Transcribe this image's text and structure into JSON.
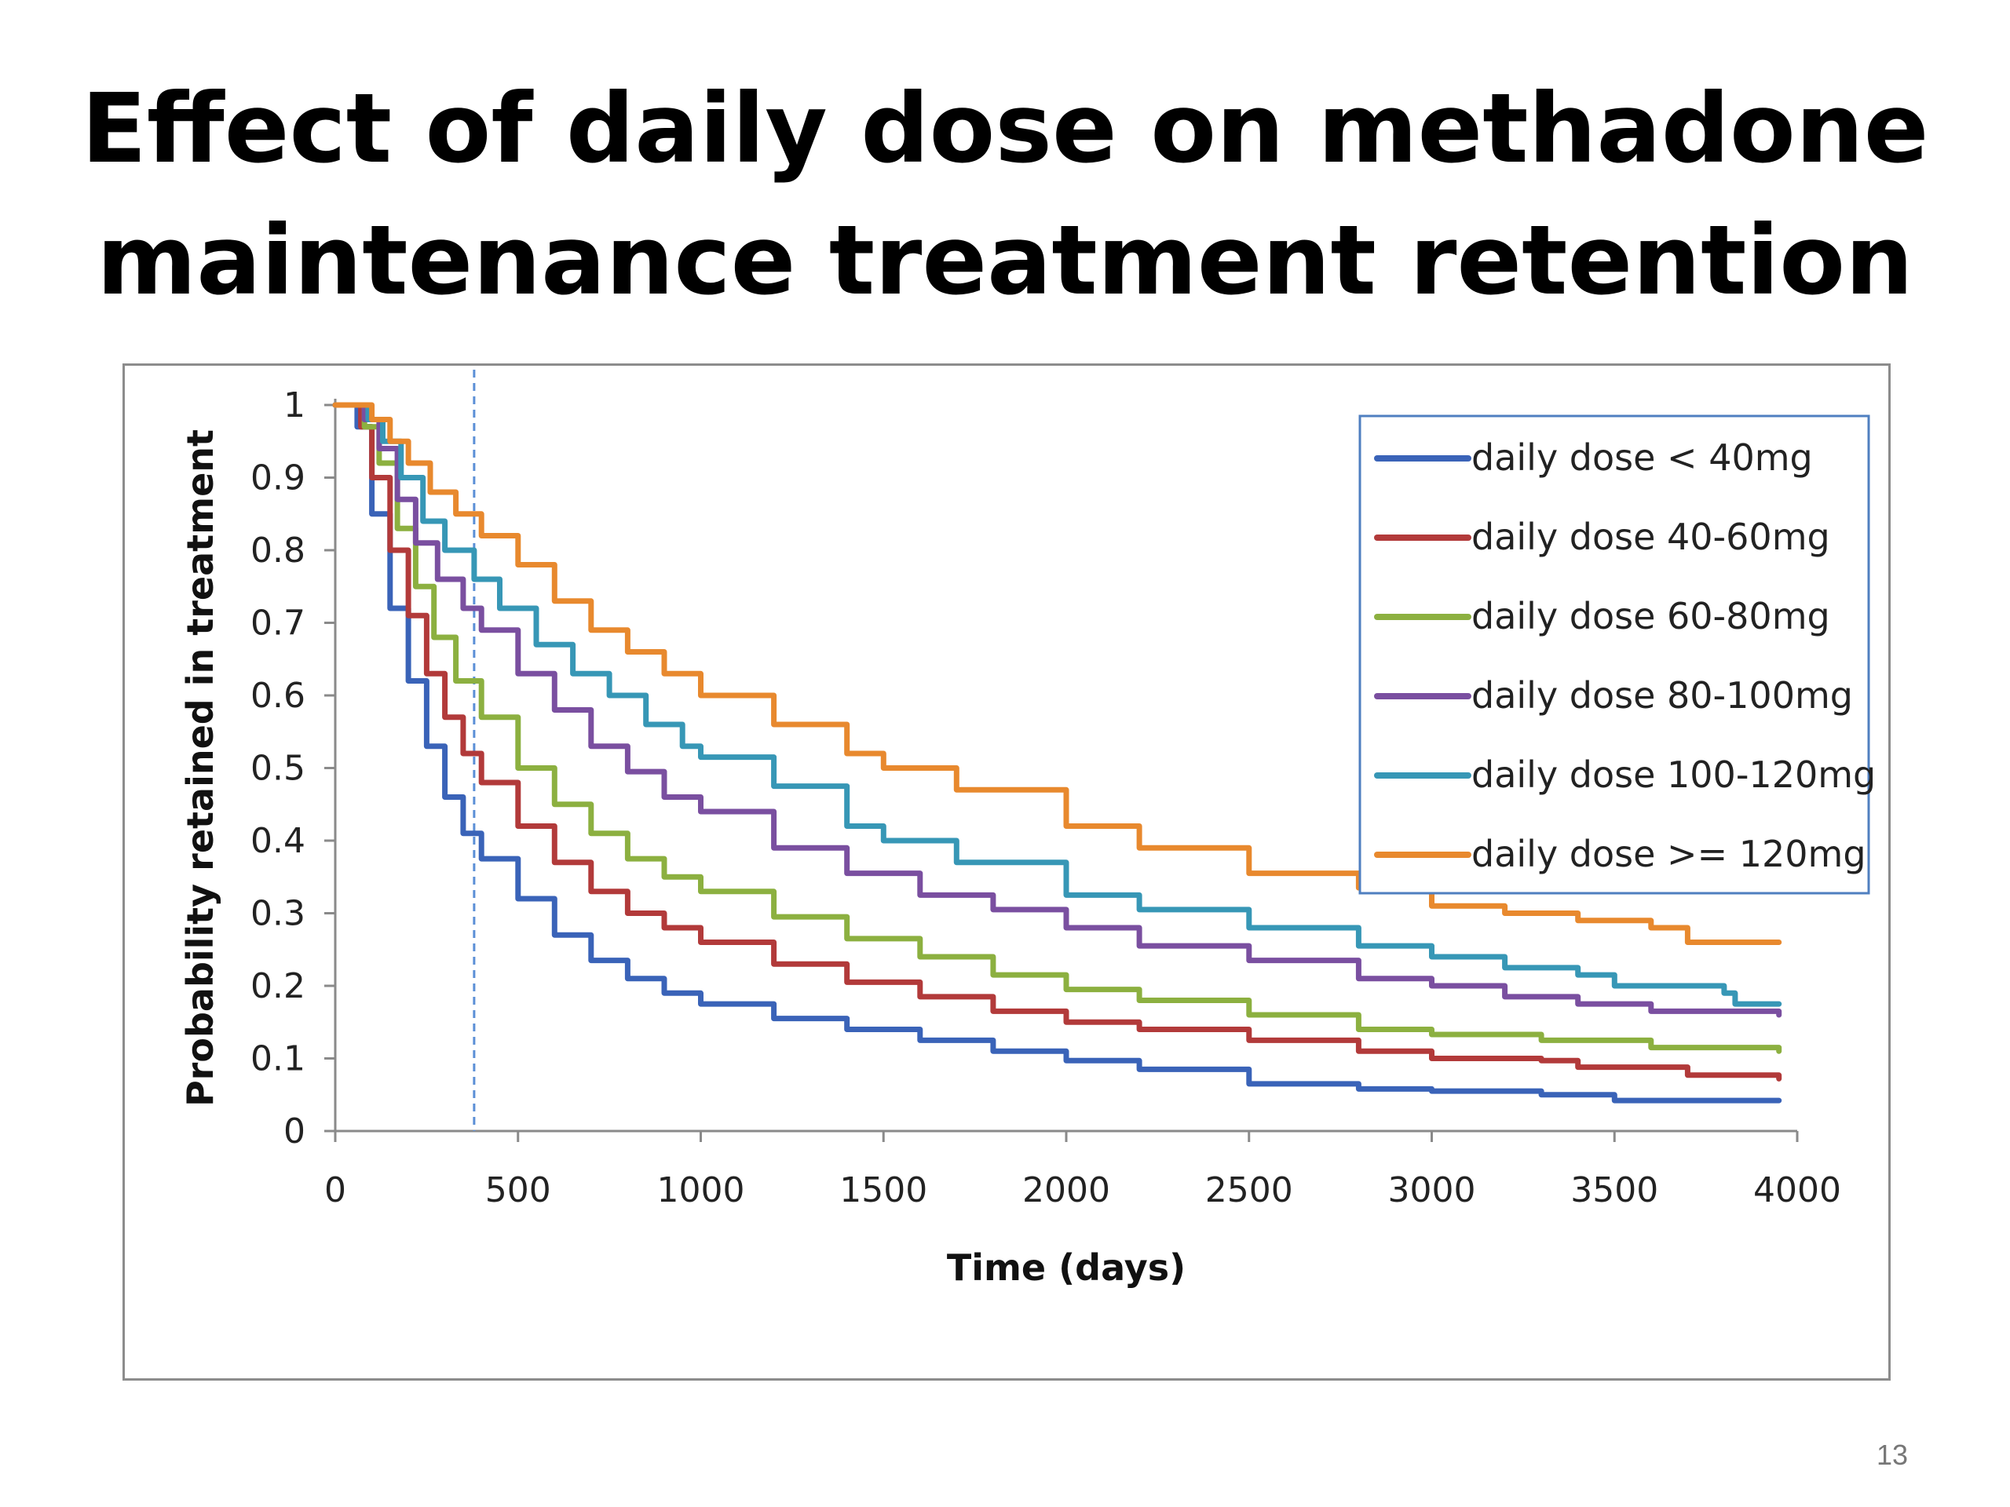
{
  "slide": {
    "title_line1": "Effect of daily dose on methadone",
    "title_line2": "maintenance treatment retention",
    "page_number": "13"
  },
  "chart_data": {
    "type": "line",
    "title": "Effect of daily dose on methadone maintenance treatment retention",
    "xlabel": "Time (days)",
    "ylabel": "Probability retained in treatment",
    "xlim": [
      0,
      4000
    ],
    "ylim": [
      0,
      1
    ],
    "x_ticks": [
      0,
      500,
      1000,
      1500,
      2000,
      2500,
      3000,
      3500,
      4000
    ],
    "y_ticks": [
      0,
      0.1,
      0.2,
      0.3,
      0.4,
      0.5,
      0.6,
      0.7,
      0.8,
      0.9,
      1
    ],
    "grid": false,
    "legend_position": "top-right",
    "reference_line": {
      "x": 380,
      "style": "dashed",
      "color": "#5b8fd6"
    },
    "series": [
      {
        "name": "daily dose < 40mg",
        "color": "#3a63b8",
        "points": [
          [
            0,
            1
          ],
          [
            30,
            1
          ],
          [
            60,
            0.97
          ],
          [
            100,
            0.85
          ],
          [
            150,
            0.72
          ],
          [
            200,
            0.62
          ],
          [
            250,
            0.53
          ],
          [
            300,
            0.46
          ],
          [
            350,
            0.41
          ],
          [
            400,
            0.375
          ],
          [
            500,
            0.32
          ],
          [
            600,
            0.27
          ],
          [
            700,
            0.235
          ],
          [
            800,
            0.21
          ],
          [
            900,
            0.19
          ],
          [
            1000,
            0.175
          ],
          [
            1200,
            0.155
          ],
          [
            1400,
            0.14
          ],
          [
            1600,
            0.125
          ],
          [
            1800,
            0.11
          ],
          [
            2000,
            0.097
          ],
          [
            2200,
            0.085
          ],
          [
            2500,
            0.065
          ],
          [
            2800,
            0.058
          ],
          [
            3000,
            0.055
          ],
          [
            3300,
            0.05
          ],
          [
            3500,
            0.042
          ],
          [
            3950,
            0.042
          ]
        ]
      },
      {
        "name": "daily dose 40-60mg",
        "color": "#b23a3a",
        "points": [
          [
            0,
            1
          ],
          [
            40,
            1
          ],
          [
            70,
            0.97
          ],
          [
            100,
            0.9
          ],
          [
            150,
            0.8
          ],
          [
            200,
            0.71
          ],
          [
            250,
            0.63
          ],
          [
            300,
            0.57
          ],
          [
            350,
            0.52
          ],
          [
            400,
            0.48
          ],
          [
            500,
            0.42
          ],
          [
            600,
            0.37
          ],
          [
            700,
            0.33
          ],
          [
            800,
            0.3
          ],
          [
            900,
            0.28
          ],
          [
            1000,
            0.26
          ],
          [
            1200,
            0.23
          ],
          [
            1400,
            0.205
          ],
          [
            1600,
            0.185
          ],
          [
            1800,
            0.165
          ],
          [
            2000,
            0.15
          ],
          [
            2200,
            0.14
          ],
          [
            2500,
            0.125
          ],
          [
            2800,
            0.11
          ],
          [
            3000,
            0.1
          ],
          [
            3300,
            0.097
          ],
          [
            3400,
            0.088
          ],
          [
            3700,
            0.077
          ],
          [
            3950,
            0.072
          ]
        ]
      },
      {
        "name": "daily dose 60-80mg",
        "color": "#8cb040",
        "points": [
          [
            0,
            1
          ],
          [
            40,
            1
          ],
          [
            80,
            0.97
          ],
          [
            120,
            0.92
          ],
          [
            170,
            0.83
          ],
          [
            220,
            0.75
          ],
          [
            270,
            0.68
          ],
          [
            330,
            0.62
          ],
          [
            400,
            0.57
          ],
          [
            500,
            0.5
          ],
          [
            600,
            0.45
          ],
          [
            700,
            0.41
          ],
          [
            800,
            0.375
          ],
          [
            900,
            0.35
          ],
          [
            1000,
            0.33
          ],
          [
            1200,
            0.295
          ],
          [
            1400,
            0.265
          ],
          [
            1600,
            0.24
          ],
          [
            1800,
            0.215
          ],
          [
            2000,
            0.195
          ],
          [
            2200,
            0.18
          ],
          [
            2500,
            0.16
          ],
          [
            2800,
            0.14
          ],
          [
            3000,
            0.133
          ],
          [
            3300,
            0.125
          ],
          [
            3600,
            0.115
          ],
          [
            3950,
            0.11
          ]
        ]
      },
      {
        "name": "daily dose 80-100mg",
        "color": "#7a4fa0",
        "points": [
          [
            0,
            1
          ],
          [
            50,
            1
          ],
          [
            80,
            0.98
          ],
          [
            120,
            0.94
          ],
          [
            170,
            0.87
          ],
          [
            220,
            0.81
          ],
          [
            280,
            0.76
          ],
          [
            350,
            0.72
          ],
          [
            400,
            0.69
          ],
          [
            500,
            0.63
          ],
          [
            600,
            0.58
          ],
          [
            700,
            0.53
          ],
          [
            800,
            0.495
          ],
          [
            900,
            0.46
          ],
          [
            1000,
            0.44
          ],
          [
            1200,
            0.39
          ],
          [
            1400,
            0.355
          ],
          [
            1600,
            0.325
          ],
          [
            1800,
            0.305
          ],
          [
            2000,
            0.28
          ],
          [
            2200,
            0.255
          ],
          [
            2500,
            0.235
          ],
          [
            2800,
            0.21
          ],
          [
            3000,
            0.2
          ],
          [
            3200,
            0.185
          ],
          [
            3400,
            0.175
          ],
          [
            3600,
            0.165
          ],
          [
            3950,
            0.16
          ]
        ]
      },
      {
        "name": "daily dose 100-120mg",
        "color": "#3797b6",
        "points": [
          [
            0,
            1
          ],
          [
            50,
            1
          ],
          [
            90,
            0.98
          ],
          [
            130,
            0.95
          ],
          [
            180,
            0.9
          ],
          [
            240,
            0.84
          ],
          [
            300,
            0.8
          ],
          [
            380,
            0.76
          ],
          [
            450,
            0.72
          ],
          [
            550,
            0.67
          ],
          [
            650,
            0.63
          ],
          [
            750,
            0.6
          ],
          [
            850,
            0.56
          ],
          [
            950,
            0.53
          ],
          [
            1000,
            0.515
          ],
          [
            1200,
            0.475
          ],
          [
            1400,
            0.42
          ],
          [
            1500,
            0.4
          ],
          [
            1700,
            0.37
          ],
          [
            2000,
            0.325
          ],
          [
            2200,
            0.305
          ],
          [
            2500,
            0.28
          ],
          [
            2800,
            0.255
          ],
          [
            3000,
            0.24
          ],
          [
            3200,
            0.225
          ],
          [
            3400,
            0.215
          ],
          [
            3500,
            0.2
          ],
          [
            3800,
            0.19
          ],
          [
            3830,
            0.175
          ],
          [
            3950,
            0.175
          ]
        ]
      },
      {
        "name": "daily dose >= 120mg",
        "color": "#e8892e",
        "points": [
          [
            0,
            1
          ],
          [
            60,
            1
          ],
          [
            100,
            0.98
          ],
          [
            150,
            0.95
          ],
          [
            200,
            0.92
          ],
          [
            260,
            0.88
          ],
          [
            330,
            0.85
          ],
          [
            400,
            0.82
          ],
          [
            500,
            0.78
          ],
          [
            600,
            0.73
          ],
          [
            700,
            0.69
          ],
          [
            800,
            0.66
          ],
          [
            900,
            0.63
          ],
          [
            1000,
            0.6
          ],
          [
            1200,
            0.56
          ],
          [
            1400,
            0.52
          ],
          [
            1500,
            0.5
          ],
          [
            1700,
            0.47
          ],
          [
            2000,
            0.42
          ],
          [
            2200,
            0.39
          ],
          [
            2500,
            0.355
          ],
          [
            2800,
            0.335
          ],
          [
            3000,
            0.31
          ],
          [
            3200,
            0.3
          ],
          [
            3400,
            0.29
          ],
          [
            3600,
            0.28
          ],
          [
            3700,
            0.26
          ],
          [
            3950,
            0.26
          ]
        ]
      }
    ]
  }
}
